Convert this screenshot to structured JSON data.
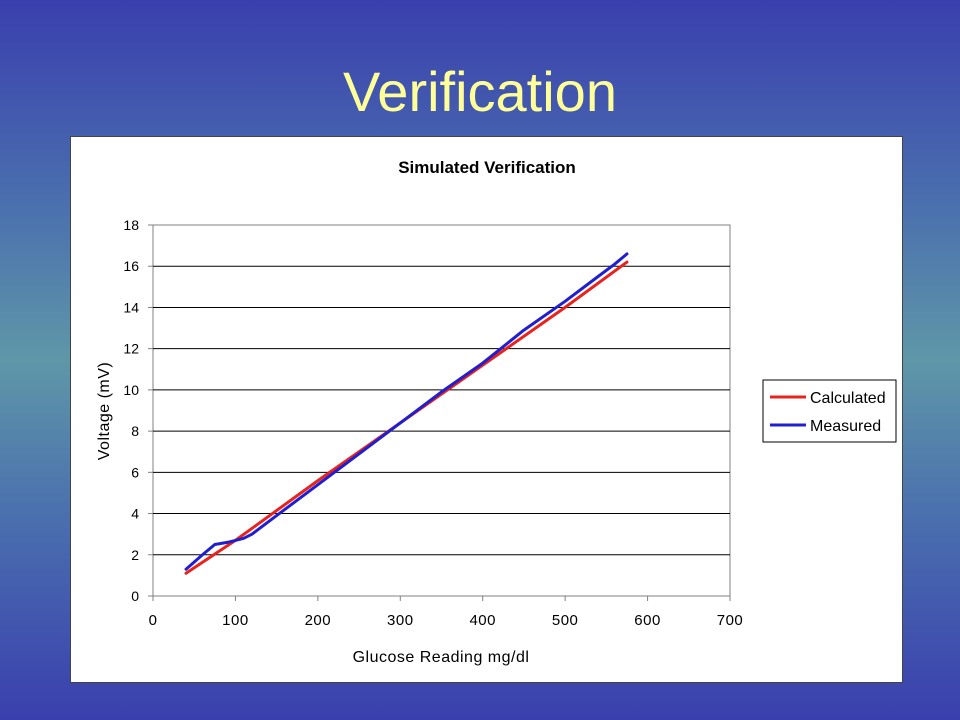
{
  "slide": {
    "title": "Verification"
  },
  "chart_data": {
    "type": "line",
    "title": "Simulated Verification",
    "xlabel": "Glucose Reading mg/dl",
    "ylabel": "Voltage (mV)",
    "xlim": [
      0,
      700
    ],
    "ylim": [
      0,
      18
    ],
    "x_ticks": [
      0,
      100,
      200,
      300,
      400,
      500,
      600,
      700
    ],
    "y_ticks": [
      0,
      2,
      4,
      6,
      8,
      10,
      12,
      14,
      16,
      18
    ],
    "grid": "horizontal",
    "legend_position": "right",
    "series": [
      {
        "name": "Calculated",
        "color": "#e8231e",
        "x": [
          40,
          100,
          200,
          300,
          400,
          500,
          575
        ],
        "y": [
          1.1,
          2.7,
          5.6,
          8.4,
          11.2,
          14.0,
          16.2
        ]
      },
      {
        "name": "Measured",
        "color": "#1f1fd0",
        "x": [
          40,
          60,
          75,
          90,
          100,
          110,
          120,
          150,
          200,
          250,
          300,
          350,
          400,
          450,
          500,
          540,
          560,
          575
        ],
        "y": [
          1.3,
          2.0,
          2.5,
          2.6,
          2.7,
          2.8,
          3.0,
          3.9,
          5.4,
          6.9,
          8.4,
          9.9,
          11.3,
          12.9,
          14.3,
          15.5,
          16.1,
          16.6
        ]
      }
    ]
  }
}
